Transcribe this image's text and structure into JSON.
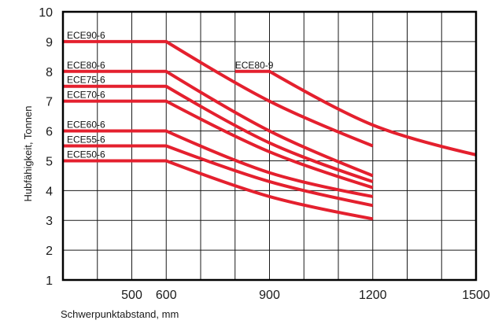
{
  "chart_data": {
    "type": "line",
    "title": "",
    "xlabel": "Schwerpunktabstand, mm",
    "ylabel": "Hubfähigkeit, Tonnen",
    "xlim": [
      300,
      1500
    ],
    "ylim": [
      1,
      10
    ],
    "x_ticks": [
      500,
      600,
      900,
      1200,
      1500
    ],
    "y_ticks": [
      1,
      2,
      3,
      4,
      5,
      6,
      7,
      8,
      9,
      10
    ],
    "grid": true,
    "legend": "none",
    "line_color": "#e4202e",
    "series": [
      {
        "name": "ECE90-6",
        "x": [
          300,
          600,
          900,
          1200
        ],
        "y": [
          9,
          9,
          7,
          5.5
        ]
      },
      {
        "name": "ECE80-6",
        "x": [
          300,
          600,
          900,
          1200
        ],
        "y": [
          8,
          8,
          6,
          4.5
        ]
      },
      {
        "name": "ECE75-6",
        "x": [
          300,
          600,
          900,
          1200
        ],
        "y": [
          7.5,
          7.5,
          5.6,
          4.3
        ]
      },
      {
        "name": "ECE70-6",
        "x": [
          300,
          600,
          900,
          1200
        ],
        "y": [
          7,
          7,
          5.3,
          4.1
        ]
      },
      {
        "name": "ECE60-6",
        "x": [
          300,
          600,
          900,
          1200
        ],
        "y": [
          6,
          6,
          4.6,
          3.8
        ]
      },
      {
        "name": "ECE55-6",
        "x": [
          300,
          600,
          900,
          1200
        ],
        "y": [
          5.5,
          5.5,
          4.3,
          3.5
        ]
      },
      {
        "name": "ECE50-6",
        "x": [
          300,
          600,
          900,
          1200
        ],
        "y": [
          5,
          5,
          3.8,
          3.05
        ]
      },
      {
        "name": "ECE80-9",
        "x": [
          800,
          900,
          1200,
          1500
        ],
        "y": [
          8,
          8,
          6.2,
          5.2
        ]
      }
    ]
  }
}
